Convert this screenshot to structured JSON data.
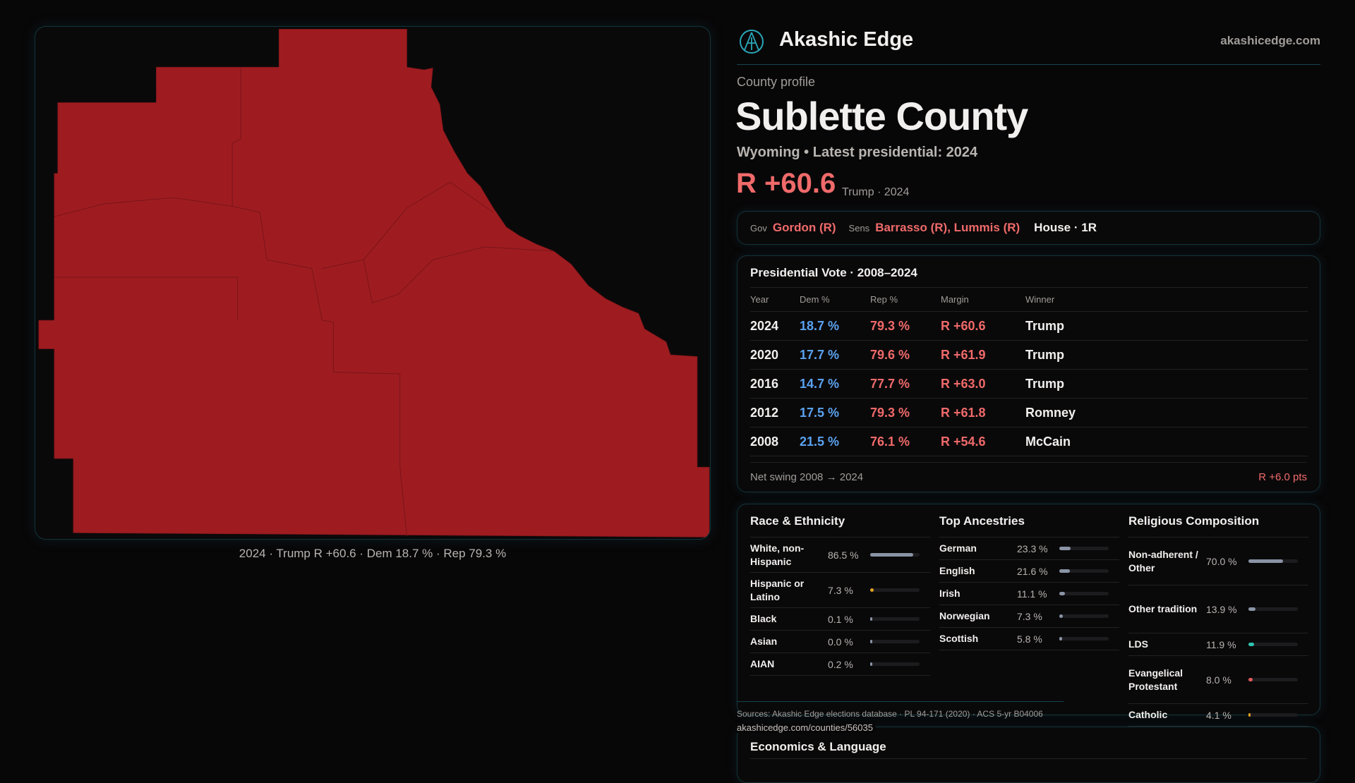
{
  "brand": {
    "name": "Akashic Edge",
    "site": "akashicedge.com"
  },
  "profile": {
    "kicker": "County profile",
    "title": "Sublette County",
    "subtitle": "Wyoming • Latest presidential: 2024",
    "margin": "R +60.6",
    "margin_note": "Trump · 2024"
  },
  "officials": {
    "gov_label": "Gov",
    "gov": "Gordon (R)",
    "sens_label": "Sens",
    "sens": "Barrasso (R), Lummis (R)",
    "house": "House · 1R"
  },
  "map": {
    "caption": "2024 · Trump R +60.6 · Dem 18.7 % · Rep 79.3 %",
    "fill": "#9e1c20"
  },
  "presidential": {
    "title": "Presidential Vote · 2008–2024",
    "headers": [
      "Year",
      "Dem %",
      "Rep %",
      "Margin",
      "Winner"
    ],
    "rows": [
      [
        "2024",
        "18.7 %",
        "79.3 %",
        "R +60.6",
        "Trump"
      ],
      [
        "2020",
        "17.7 %",
        "79.6 %",
        "R +61.9",
        "Trump"
      ],
      [
        "2016",
        "14.7 %",
        "77.7 %",
        "R +63.0",
        "Trump"
      ],
      [
        "2012",
        "17.5 %",
        "79.3 %",
        "R +61.8",
        "Romney"
      ],
      [
        "2008",
        "21.5 %",
        "76.1 %",
        "R +54.6",
        "McCain"
      ]
    ],
    "swing_label": "Net swing 2008 → 2024",
    "swing_value": "R +6.0 pts"
  },
  "race": {
    "title": "Race & Ethnicity",
    "items": [
      {
        "label": "White, non-Hispanic",
        "value": "86.5 %",
        "pct": 86.5,
        "color": "#8a94a6"
      },
      {
        "label": "Hispanic or Latino",
        "value": "7.3 %",
        "pct": 7.3,
        "color": "#e0a020"
      },
      {
        "label": "Black",
        "value": "0.1 %",
        "pct": 0.1,
        "color": "#8a94a6"
      },
      {
        "label": "Asian",
        "value": "0.0 %",
        "pct": 0,
        "color": "#8a94a6"
      },
      {
        "label": "AIAN",
        "value": "0.2 %",
        "pct": 0.2,
        "color": "#8a94a6"
      }
    ]
  },
  "ancestry": {
    "title": "Top Ancestries",
    "items": [
      {
        "label": "German",
        "value": "23.3 %",
        "pct": 23.3,
        "color": "#8a94a6"
      },
      {
        "label": "English",
        "value": "21.6 %",
        "pct": 21.6,
        "color": "#8a94a6"
      },
      {
        "label": "Irish",
        "value": "11.1 %",
        "pct": 11.1,
        "color": "#8a94a6"
      },
      {
        "label": "Norwegian",
        "value": "7.3 %",
        "pct": 7.3,
        "color": "#8a94a6"
      },
      {
        "label": "Scottish",
        "value": "5.8 %",
        "pct": 5.8,
        "color": "#8a94a6"
      }
    ]
  },
  "religion": {
    "title": "Religious Composition",
    "items": [
      {
        "label": "Non-adherent / Other",
        "value": "70.0 %",
        "pct": 70,
        "color": "#8a94a6"
      },
      {
        "label": "Other tradition",
        "value": "13.9 %",
        "pct": 13.9,
        "color": "#8a94a6"
      },
      {
        "label": "LDS",
        "value": "11.9 %",
        "pct": 11.9,
        "color": "#2ec4b0"
      },
      {
        "label": "Evangelical Protestant",
        "value": "8.0 %",
        "pct": 8,
        "color": "#e05a5a"
      },
      {
        "label": "Catholic",
        "value": "4.1 %",
        "pct": 4.1,
        "color": "#e0a020"
      }
    ]
  },
  "footer": {
    "sources": "Sources: Akashic Edge elections database · PL 94-171 (2020) · ACS 5-yr B04006",
    "url": "akashicedge.com/counties/56035"
  },
  "economics": {
    "title": "Economics & Language"
  }
}
